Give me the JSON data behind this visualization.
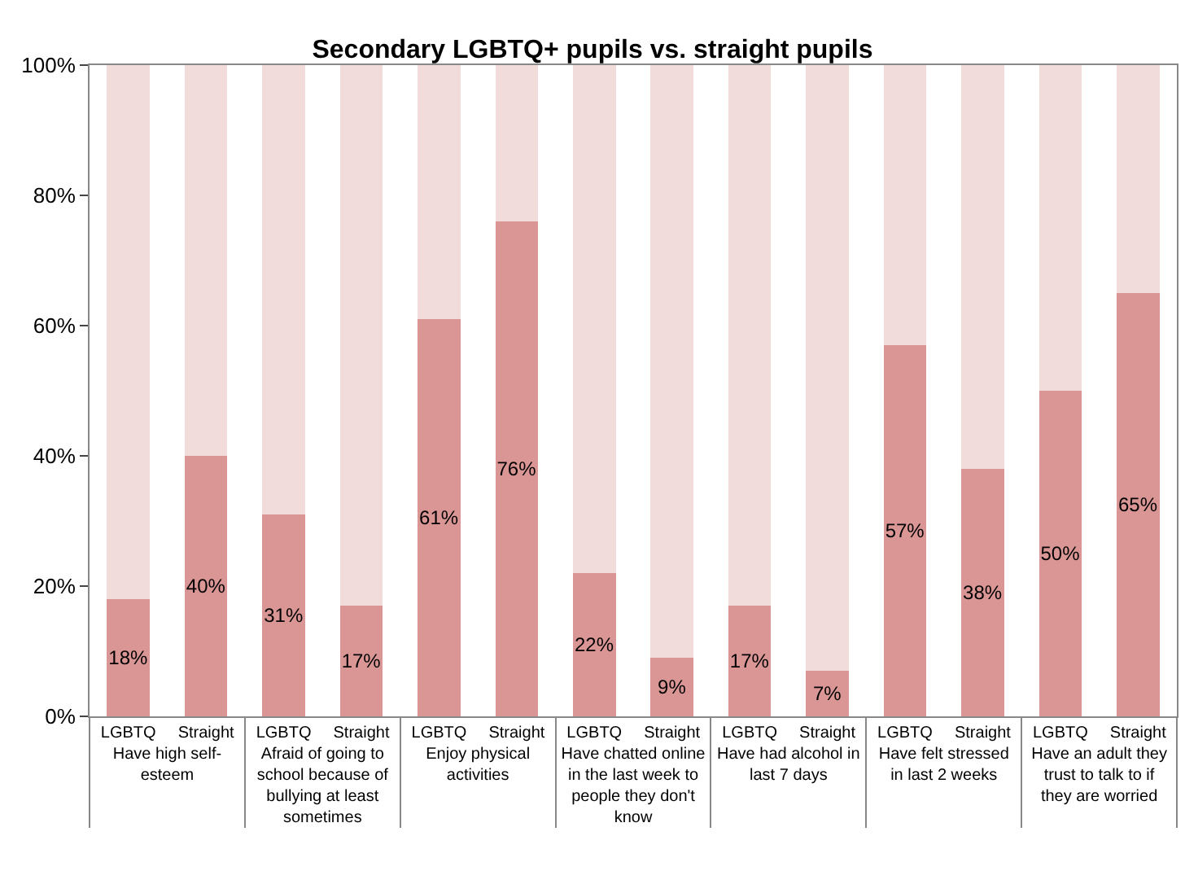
{
  "chart_data": {
    "type": "bar",
    "title": "Secondary LGBTQ+ pupils vs. straight pupils",
    "stacked": true,
    "categories": [
      "LGBTQ",
      "Straight",
      "LGBTQ",
      "Straight",
      "LGBTQ",
      "Straight",
      "LGBTQ",
      "Straight",
      "LGBTQ",
      "Straight",
      "LGBTQ",
      "Straight",
      "LGBTQ",
      "Straight"
    ],
    "series": [
      {
        "color": "#d99694",
        "values": [
          18,
          40,
          31,
          17,
          61,
          76,
          22,
          9,
          17,
          7,
          57,
          38,
          50,
          65
        ],
        "value_labels": [
          "18%",
          "40%",
          "31%",
          "17%",
          "61%",
          "76%",
          "22%",
          "9%",
          "17%",
          "7%",
          "57%",
          "38%",
          "50%",
          "65%"
        ]
      },
      {
        "color": "#f2dcdb",
        "values": [
          82,
          60,
          69,
          83,
          39,
          24,
          78,
          91,
          83,
          93,
          43,
          62,
          50,
          35
        ]
      }
    ],
    "annotations": [
      "Have high self-esteem",
      "Afraid of going to school because of bullying at least sometimes",
      "Enjoy physical activities",
      "Have chatted online in the last week to people they don't know",
      "Have had alcohol in last 7 days",
      "Have felt stressed in last 2 weeks",
      "Have an adult they trust to talk to if they are worried"
    ],
    "ylim": [
      0,
      100
    ],
    "yticks": [
      {
        "value": 0,
        "label": "0%"
      },
      {
        "value": 20,
        "label": "20%"
      },
      {
        "value": 40,
        "label": "40%"
      },
      {
        "value": 60,
        "label": "60%"
      },
      {
        "value": 80,
        "label": "80%"
      },
      {
        "value": 100,
        "label": "100%"
      }
    ],
    "data_labels": false
  }
}
